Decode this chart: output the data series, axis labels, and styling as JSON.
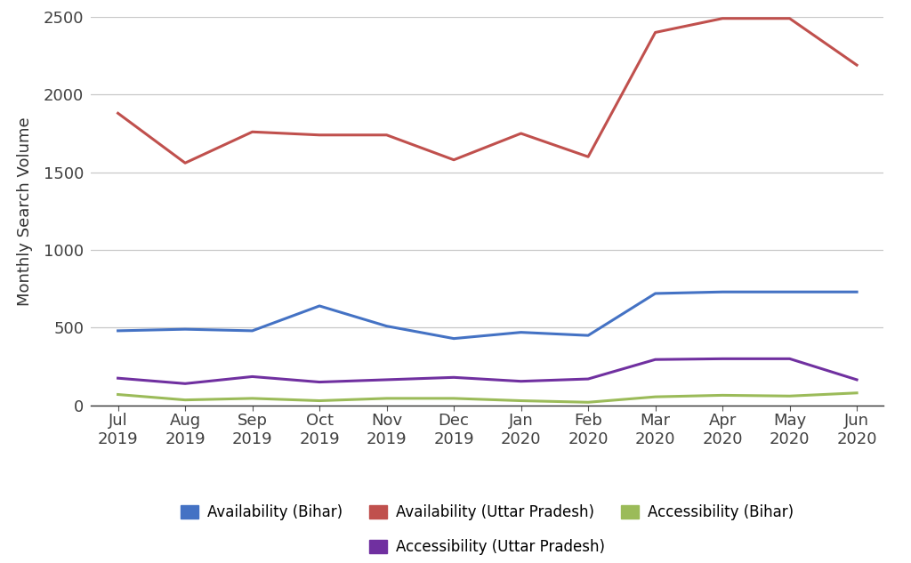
{
  "x_labels": [
    "Jul\n2019",
    "Aug\n2019",
    "Sep\n2019",
    "Oct\n2019",
    "Nov\n2019",
    "Dec\n2019",
    "Jan\n2020",
    "Feb\n2020",
    "Mar\n2020",
    "Apr\n2020",
    "May\n2020",
    "Jun\n2020"
  ],
  "availability_bihar": [
    480,
    490,
    480,
    640,
    510,
    430,
    470,
    450,
    720,
    730,
    730,
    730
  ],
  "availability_up": [
    1880,
    1560,
    1760,
    1740,
    1740,
    1580,
    1750,
    1600,
    2400,
    2490,
    2490,
    2190
  ],
  "accessibility_bihar": [
    70,
    35,
    45,
    30,
    45,
    45,
    30,
    20,
    55,
    65,
    60,
    80
  ],
  "accessibility_up": [
    175,
    140,
    185,
    150,
    165,
    180,
    155,
    170,
    295,
    300,
    300,
    165
  ],
  "colors": {
    "availability_bihar": "#4472C4",
    "availability_up": "#C0504D",
    "accessibility_bihar": "#9BBB59",
    "accessibility_up": "#7030A0"
  },
  "legend_order": [
    [
      "Availability (Bihar)",
      "availability_bihar"
    ],
    [
      "Availability (Uttar Pradesh)",
      "availability_up"
    ],
    [
      "Accessibility (Bihar)",
      "accessibility_bihar"
    ],
    [
      "Accessibility (Uttar Pradesh)",
      "accessibility_up"
    ]
  ],
  "ylabel": "Monthly Search Volume",
  "ylim": [
    0,
    2500
  ],
  "yticks": [
    0,
    500,
    1000,
    1500,
    2000,
    2500
  ],
  "background_color": "#ffffff",
  "grid_color": "#c8c8c8",
  "line_width": 2.2,
  "tick_fontsize": 13,
  "ylabel_fontsize": 13,
  "legend_fontsize": 12
}
